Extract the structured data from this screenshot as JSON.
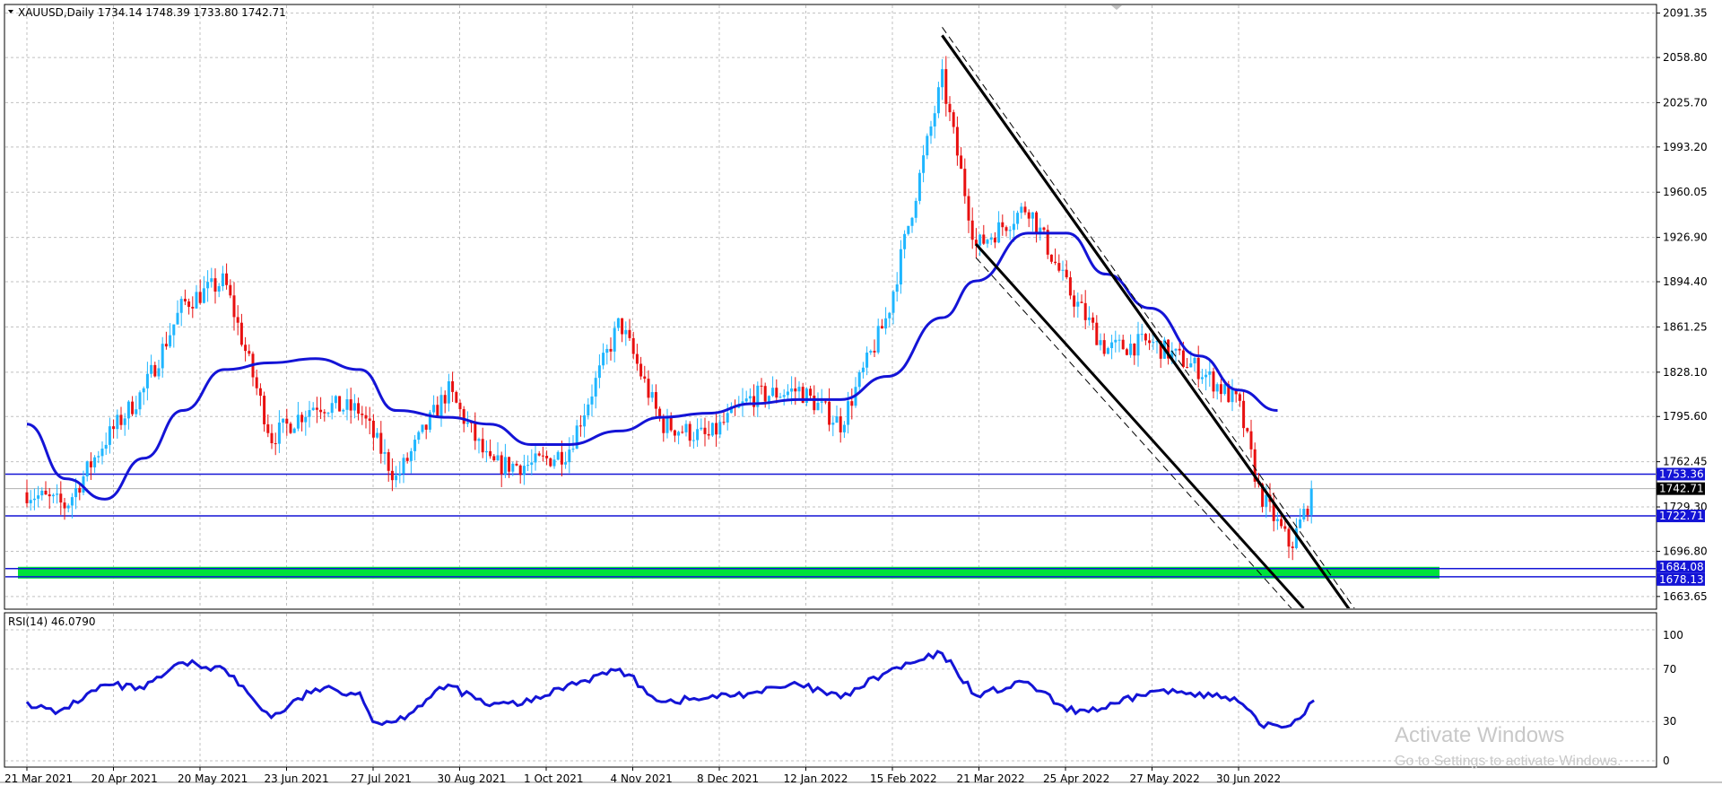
{
  "header": {
    "symbol_line": "XAUUSD,Daily  1734.14 1748.39 1733.80 1742.71",
    "rsi_line": "RSI(14) 46.0790"
  },
  "watermark": {
    "title": "Activate Windows",
    "subtitle": "Go to Settings to activate Windows."
  },
  "colors": {
    "bull": "#1fb6ff",
    "bear": "#e81010",
    "ma": "#1414d6",
    "rsi": "#1414d6",
    "hline": "#1414d6",
    "support_zone": "#00e23a",
    "channel": "#000000",
    "grid": "#c0c0c0"
  },
  "chart_data": [
    {
      "type": "candlestick",
      "title": "XAUUSD,Daily",
      "ohlc_last": {
        "open": 1734.14,
        "high": 1748.39,
        "low": 1733.8,
        "close": 1742.71
      },
      "x_ticks": [
        "21 Mar 2021",
        "20 Apr 2021",
        "20 May 2021",
        "23 Jun 2021",
        "27 Jul 2021",
        "30 Aug 2021",
        "1 Oct 2021",
        "4 Nov 2021",
        "8 Dec 2021",
        "12 Jan 2022",
        "15 Feb 2022",
        "21 Mar 2022",
        "25 Apr 2022",
        "27 May 2022",
        "30 Jun 2022"
      ],
      "y_ticks": [
        "2091.35",
        "2058.80",
        "2025.70",
        "1993.20",
        "1960.05",
        "1926.90",
        "1894.40",
        "1861.25",
        "1828.10",
        "1795.60",
        "1762.45",
        "1729.30",
        "1696.80",
        "1663.65"
      ],
      "ylim": [
        1655,
        2097
      ],
      "close_path": [
        [
          "21 Mar 2021",
          1740
        ],
        [
          "5 Apr 2021",
          1730
        ],
        [
          "20 Apr 2021",
          1778
        ],
        [
          "5 May 2021",
          1815
        ],
        [
          "20 May 2021",
          1878
        ],
        [
          "5 Jun 2021",
          1895
        ],
        [
          "23 Jun 2021",
          1780
        ],
        [
          "10 Jul 2021",
          1805
        ],
        [
          "27 Jul 2021",
          1800
        ],
        [
          "10 Aug 2021",
          1750
        ],
        [
          "30 Aug 2021",
          1815
        ],
        [
          "15 Sep 2021",
          1760
        ],
        [
          "1 Oct 2021",
          1760
        ],
        [
          "15 Oct 2021",
          1770
        ],
        [
          "4 Nov 2021",
          1865
        ],
        [
          "20 Nov 2021",
          1790
        ],
        [
          "8 Dec 2021",
          1780
        ],
        [
          "25 Dec 2021",
          1810
        ],
        [
          "12 Jan 2022",
          1815
        ],
        [
          "28 Jan 2022",
          1790
        ],
        [
          "15 Feb 2022",
          1870
        ],
        [
          "8 Mar 2022",
          2043
        ],
        [
          "21 Mar 2022",
          1920
        ],
        [
          "10 Apr 2022",
          1950
        ],
        [
          "25 Apr 2022",
          1890
        ],
        [
          "10 May 2022",
          1845
        ],
        [
          "27 May 2022",
          1850
        ],
        [
          "15 Jun 2022",
          1830
        ],
        [
          "30 Jun 2022",
          1805
        ],
        [
          "8 Jul 2022",
          1740
        ],
        [
          "20 Jul 2022",
          1700
        ],
        [
          "29 Jul 2022",
          1742.71
        ]
      ],
      "moving_average_path": [
        [
          "21 Mar 2021",
          1790
        ],
        [
          "5 Apr 2021",
          1750
        ],
        [
          "20 Apr 2021",
          1735
        ],
        [
          "5 May 2021",
          1765
        ],
        [
          "20 May 2021",
          1800
        ],
        [
          "5 Jun 2021",
          1830
        ],
        [
          "23 Jun 2021",
          1835
        ],
        [
          "10 Jul 2021",
          1838
        ],
        [
          "27 Jul 2021",
          1830
        ],
        [
          "10 Aug 2021",
          1800
        ],
        [
          "30 Aug 2021",
          1795
        ],
        [
          "15 Sep 2021",
          1790
        ],
        [
          "1 Oct 2021",
          1775
        ],
        [
          "15 Oct 2021",
          1775
        ],
        [
          "4 Nov 2021",
          1785
        ],
        [
          "20 Nov 2021",
          1795
        ],
        [
          "8 Dec 2021",
          1798
        ],
        [
          "25 Dec 2021",
          1805
        ],
        [
          "12 Jan 2022",
          1808
        ],
        [
          "28 Jan 2022",
          1808
        ],
        [
          "15 Feb 2022",
          1825
        ],
        [
          "8 Mar 2022",
          1868
        ],
        [
          "21 Mar 2022",
          1895
        ],
        [
          "10 Apr 2022",
          1930
        ],
        [
          "25 Apr 2022",
          1930
        ],
        [
          "10 May 2022",
          1900
        ],
        [
          "27 May 2022",
          1875
        ],
        [
          "15 Jun 2022",
          1840
        ],
        [
          "30 Jun 2022",
          1815
        ],
        [
          "15 Jul 2022",
          1800
        ]
      ],
      "horizontal_levels": [
        1753.36,
        1742.71,
        1722.71,
        1684.08,
        1678.13
      ],
      "level_labels": [
        "1753.36",
        "1742.71",
        "1722.71",
        "1684.08",
        "1678.13"
      ],
      "support_zone": [
        1678.13,
        1684.08
      ],
      "channel_upper": [
        [
          "8 Mar 2022",
          2075
        ],
        [
          "15 Aug 2022",
          1645
        ]
      ],
      "channel_lower": [
        [
          "21 Mar 2022",
          1922
        ],
        [
          "25 Jul 2022",
          1655
        ]
      ],
      "grid": true
    },
    {
      "type": "line",
      "title": "RSI(14) 46.0790",
      "indicator": "RSI(14)",
      "last_value": 46.079,
      "y_ticks": [
        "100",
        "70",
        "30",
        "0"
      ],
      "ylim": [
        0,
        100
      ],
      "series": [
        {
          "values": [
            [
              "21 Mar 2021",
              45
            ],
            [
              "1 Apr 2021",
              36
            ],
            [
              "20 Apr 2021",
              58
            ],
            [
              "5 May 2021",
              55
            ],
            [
              "20 May 2021",
              75
            ],
            [
              "5 Jun 2021",
              70
            ],
            [
              "23 Jun 2021",
              33
            ],
            [
              "10 Jul 2021",
              55
            ],
            [
              "27 Jul 2021",
              52
            ],
            [
              "1 Aug 2021",
              30
            ],
            [
              "10 Aug 2021",
              30
            ],
            [
              "30 Aug 2021",
              58
            ],
            [
              "15 Sep 2021",
              42
            ],
            [
              "1 Oct 2021",
              45
            ],
            [
              "15 Oct 2021",
              58
            ],
            [
              "4 Nov 2021",
              70
            ],
            [
              "20 Nov 2021",
              45
            ],
            [
              "8 Dec 2021",
              48
            ],
            [
              "25 Dec 2021",
              52
            ],
            [
              "12 Jan 2022",
              58
            ],
            [
              "28 Jan 2022",
              48
            ],
            [
              "15 Feb 2022",
              68
            ],
            [
              "8 Mar 2022",
              82
            ],
            [
              "21 Mar 2022",
              50
            ],
            [
              "10 Apr 2022",
              60
            ],
            [
              "25 Apr 2022",
              38
            ],
            [
              "10 May 2022",
              40
            ],
            [
              "27 May 2022",
              53
            ],
            [
              "15 Jun 2022",
              52
            ],
            [
              "30 Jun 2022",
              45
            ],
            [
              "8 Jul 2022",
              28
            ],
            [
              "20 Jul 2022",
              27
            ],
            [
              "29 Jul 2022",
              46.08
            ]
          ]
        }
      ],
      "grid": true
    }
  ]
}
